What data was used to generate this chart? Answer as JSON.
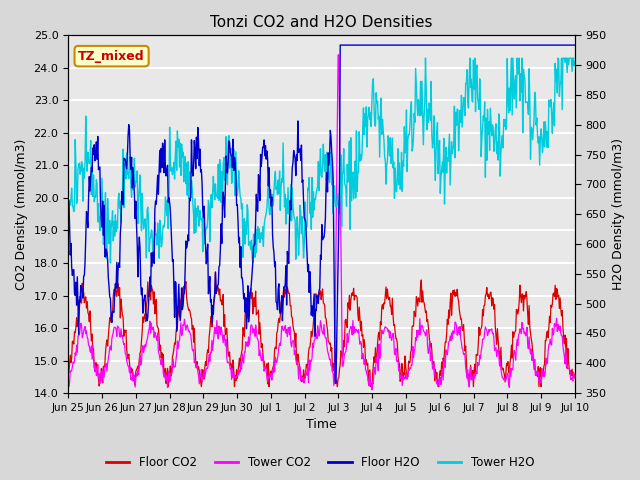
{
  "title": "Tonzi CO2 and H2O Densities",
  "xlabel": "Time",
  "ylabel_left": "CO2 Density (mmol/m3)",
  "ylabel_right": "H2O Density (mmol/m3)",
  "ylim_left": [
    14.0,
    25.0
  ],
  "ylim_right": [
    350,
    950
  ],
  "annotation": "TZ_mixed",
  "annotation_color": "#cc0000",
  "annotation_bg": "#ffffcc",
  "annotation_border": "#cc8800",
  "xtick_labels": [
    "Jun 25",
    "Jun 26",
    "Jun 27",
    "Jun 28",
    "Jun 29",
    "Jun 30",
    "Jul 1",
    "Jul 2",
    "Jul 3",
    "Jul 4",
    "Jul 5",
    "Jul 6",
    "Jul 7",
    "Jul 8",
    "Jul 9",
    "Jul 10"
  ],
  "yticks_left": [
    14.0,
    15.0,
    16.0,
    17.0,
    18.0,
    19.0,
    20.0,
    21.0,
    22.0,
    23.0,
    24.0,
    25.0
  ],
  "yticks_right": [
    350,
    400,
    450,
    500,
    550,
    600,
    650,
    700,
    750,
    800,
    850,
    900,
    950
  ],
  "colors": {
    "floor_co2": "#dd0000",
    "tower_co2": "#ff00ff",
    "floor_h2o": "#0000cc",
    "tower_h2o": "#00ccdd"
  },
  "legend_labels": [
    "Floor CO2",
    "Tower CO2",
    "Floor H2O",
    "Tower H2O"
  ],
  "bg_color": "#d8d8d8",
  "plot_bg": "#e8e8e8",
  "n_points": 720,
  "seed": 42
}
